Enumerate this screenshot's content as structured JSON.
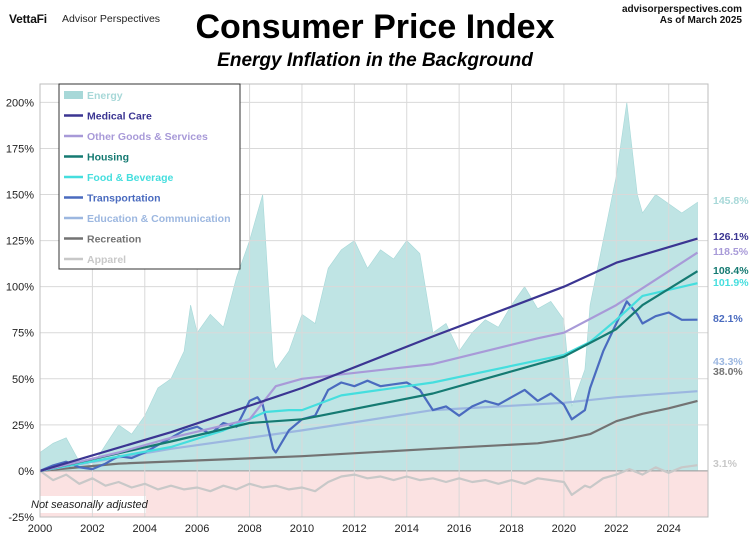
{
  "header": {
    "logo": "VettaFi",
    "logo_sub": "Advisor Perspectives",
    "site": "advisorperspectives.com",
    "asof": "As of March 2025"
  },
  "note": "Not seasonally adjusted",
  "chart_data": {
    "type": "line",
    "title": "Consumer Price Index",
    "subtitle": "Energy Inflation in the Background",
    "x_ticks": [
      "2000",
      "2002",
      "2004",
      "2006",
      "2008",
      "2010",
      "2012",
      "2014",
      "2016",
      "2018",
      "2020",
      "2022",
      "2024"
    ],
    "y_ticks": [
      "-25%",
      "0%",
      "25%",
      "50%",
      "75%",
      "100%",
      "125%",
      "150%",
      "175%",
      "200%"
    ],
    "xlim": [
      2000,
      2025.5
    ],
    "ylim": [
      -25,
      210
    ],
    "grid": true,
    "legend_position": "top-left",
    "colors": {
      "negative_band": "#fbe2e2",
      "energy_fill": "#bfe4e4",
      "grid": "#d9d9d9"
    },
    "series": [
      {
        "name": "Energy",
        "color": "#a7d8d8",
        "style": "area",
        "end_label": "145.8%",
        "x": [
          2000,
          2000.5,
          2001,
          2001.5,
          2002,
          2002.5,
          2003,
          2003.5,
          2004,
          2004.5,
          2005,
          2005.5,
          2005.75,
          2006,
          2006.5,
          2007,
          2007.5,
          2008,
          2008.3,
          2008.5,
          2008.9,
          2009,
          2009.5,
          2010,
          2010.5,
          2011,
          2011.5,
          2012,
          2012.5,
          2013,
          2013.5,
          2014,
          2014.5,
          2015,
          2015.5,
          2016,
          2016.5,
          2017,
          2017.5,
          2018,
          2018.5,
          2019,
          2019.5,
          2020,
          2020.3,
          2020.8,
          2021,
          2021.5,
          2022,
          2022.4,
          2022.8,
          2023,
          2023.5,
          2024,
          2024.5,
          2025.1
        ],
        "y": [
          10,
          15,
          18,
          5,
          3,
          14,
          25,
          20,
          30,
          45,
          50,
          65,
          90,
          75,
          85,
          78,
          105,
          125,
          140,
          150,
          60,
          55,
          65,
          85,
          80,
          110,
          120,
          125,
          110,
          120,
          115,
          125,
          118,
          75,
          80,
          65,
          75,
          82,
          78,
          90,
          100,
          88,
          92,
          82,
          35,
          55,
          90,
          125,
          160,
          200,
          150,
          140,
          150,
          145,
          140,
          145.8
        ]
      },
      {
        "name": "Medical Care",
        "color": "#3b3592",
        "end_label": "126.1%",
        "x": [
          2000,
          2005,
          2010,
          2015,
          2020,
          2022,
          2025.1
        ],
        "y": [
          0,
          21,
          45,
          73,
          100,
          113,
          126.1
        ]
      },
      {
        "name": "Other Goods & Services",
        "color": "#a89ad8",
        "end_label": "118.5%",
        "x": [
          2000,
          2003,
          2005,
          2008,
          2009,
          2010,
          2015,
          2019,
          2020,
          2022,
          2025.1
        ],
        "y": [
          0,
          10,
          18,
          28,
          46,
          50,
          58,
          72,
          75,
          90,
          118.5
        ]
      },
      {
        "name": "Housing",
        "color": "#157a72",
        "end_label": "108.4%",
        "x": [
          2000,
          2005,
          2008,
          2010,
          2015,
          2020,
          2022,
          2023,
          2025.1
        ],
        "y": [
          0,
          16,
          26,
          28,
          42,
          62,
          77,
          90,
          108.4
        ]
      },
      {
        "name": "Food & Beverage",
        "color": "#45dede",
        "end_label": "101.9%",
        "x": [
          2000,
          2005,
          2007,
          2008.6,
          2009.5,
          2010,
          2011.5,
          2015,
          2020,
          2021,
          2022,
          2023,
          2025.1
        ],
        "y": [
          0,
          13,
          22,
          32,
          33,
          33,
          41,
          48,
          63,
          70,
          82,
          95,
          101.9
        ]
      },
      {
        "name": "Transportation",
        "color": "#4a6bbf",
        "end_label": "82.1%",
        "x": [
          2000,
          2000.5,
          2001,
          2001.5,
          2002,
          2002.5,
          2003,
          2003.5,
          2004,
          2004.5,
          2005,
          2005.5,
          2006,
          2006.5,
          2007,
          2007.5,
          2008,
          2008.3,
          2008.5,
          2008.9,
          2009,
          2009.5,
          2010,
          2010.5,
          2011,
          2011.5,
          2012,
          2012.5,
          2013,
          2013.5,
          2014,
          2014.5,
          2015,
          2015.5,
          2016,
          2016.5,
          2017,
          2017.5,
          2018,
          2018.5,
          2019,
          2019.5,
          2020,
          2020.3,
          2020.8,
          2021,
          2021.5,
          2022,
          2022.4,
          2022.8,
          2023,
          2023.5,
          2024,
          2024.5,
          2025.1
        ],
        "y": [
          0,
          3,
          5,
          2,
          1,
          4,
          8,
          7,
          10,
          14,
          18,
          22,
          24,
          20,
          26,
          24,
          38,
          40,
          36,
          12,
          10,
          22,
          28,
          30,
          44,
          48,
          46,
          49,
          46,
          47,
          48,
          44,
          33,
          35,
          30,
          35,
          38,
          36,
          40,
          44,
          38,
          42,
          36,
          28,
          33,
          45,
          65,
          80,
          92,
          85,
          80,
          84,
          86,
          82,
          82.1
        ]
      },
      {
        "name": "Education & Communication",
        "color": "#9cb7e0",
        "end_label": "43.3%",
        "x": [
          2000,
          2005,
          2010,
          2015,
          2020,
          2022,
          2025.1
        ],
        "y": [
          0,
          12,
          22,
          33,
          37,
          40,
          43.3
        ]
      },
      {
        "name": "Recreation",
        "color": "#737373",
        "end_label": "38.0%",
        "x": [
          2000,
          2003,
          2010,
          2015,
          2019,
          2020,
          2021,
          2022,
          2023,
          2024,
          2025.1
        ],
        "y": [
          0,
          4,
          8,
          12,
          15,
          17,
          20,
          27,
          31,
          34,
          38.0
        ]
      },
      {
        "name": "Apparel",
        "color": "#c8c8c8",
        "end_label": "3.1%",
        "x": [
          2000,
          2000.5,
          2001,
          2001.5,
          2002,
          2002.5,
          2003,
          2003.5,
          2004,
          2004.5,
          2005,
          2005.5,
          2006,
          2006.5,
          2007,
          2007.5,
          2008,
          2008.5,
          2009,
          2009.5,
          2010,
          2010.5,
          2011,
          2011.5,
          2012,
          2012.5,
          2013,
          2013.5,
          2014,
          2014.5,
          2015,
          2015.5,
          2016,
          2016.5,
          2017,
          2017.5,
          2018,
          2018.5,
          2019,
          2019.5,
          2020,
          2020.3,
          2020.8,
          2021,
          2021.5,
          2022,
          2022.5,
          2023,
          2023.5,
          2024,
          2024.5,
          2025.1
        ],
        "y": [
          0,
          -5,
          -2,
          -7,
          -4,
          -8,
          -6,
          -9,
          -7,
          -10,
          -8,
          -10,
          -9,
          -11,
          -8,
          -10,
          -7,
          -9,
          -8,
          -10,
          -9,
          -11,
          -6,
          -3,
          -2,
          -4,
          -3,
          -5,
          -3,
          -5,
          -4,
          -6,
          -4,
          -6,
          -5,
          -7,
          -5,
          -7,
          -4,
          -5,
          -6,
          -13,
          -8,
          -9,
          -4,
          -2,
          1,
          -2,
          2,
          -1,
          2,
          3.1
        ]
      }
    ]
  }
}
